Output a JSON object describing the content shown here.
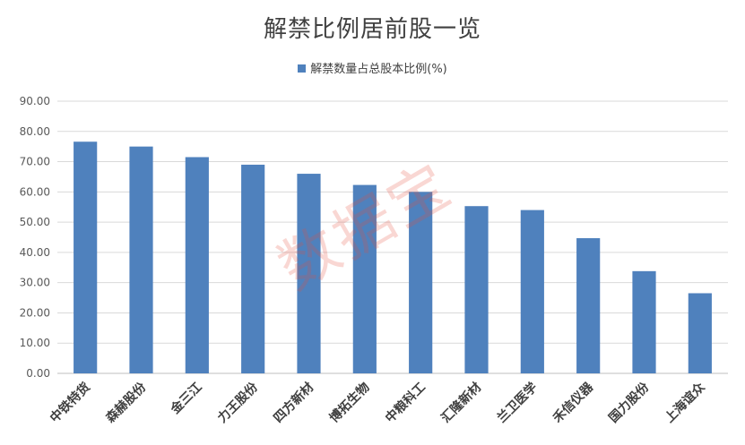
{
  "chart_data": {
    "type": "bar",
    "title": "解禁比例居前股一览",
    "categories": [
      "中铁特货",
      "森赫股份",
      "金三江",
      "力王股份",
      "四方新材",
      "博拓生物",
      "中粮科工",
      "汇隆新材",
      "兰卫医学",
      "禾信仪器",
      "国力股份",
      "上海谊众"
    ],
    "series": [
      {
        "name": "解禁数量占总股本比例(%)",
        "values": [
          76.6,
          75.0,
          71.5,
          69.0,
          66.0,
          62.3,
          60.0,
          55.3,
          54.0,
          44.7,
          33.8,
          26.5
        ]
      }
    ],
    "yticks": [
      "0.00",
      "10.00",
      "20.00",
      "30.00",
      "40.00",
      "50.00",
      "60.00",
      "70.00",
      "80.00",
      "90.00"
    ],
    "ylim": [
      0,
      90
    ],
    "grid": true,
    "legend_position": "top",
    "bar_color": "#4f81bd",
    "watermark": "数据宝"
  }
}
